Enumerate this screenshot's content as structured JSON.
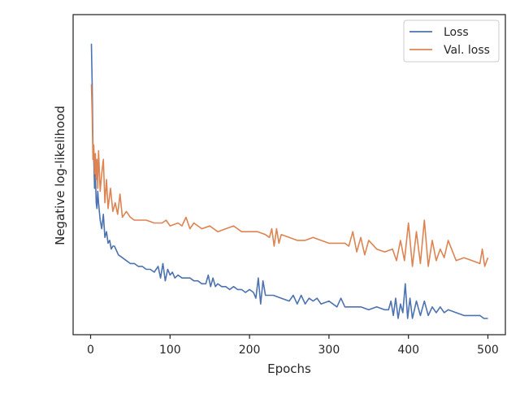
{
  "chart_data": {
    "type": "line",
    "title": "",
    "xlabel": "Epochs",
    "ylabel": "Negative log-likelihood",
    "xlim": [
      -22,
      522
    ],
    "ylim": [
      0.0,
      1.0
    ],
    "y_tick_labels_shown": false,
    "x_ticks": [
      0,
      100,
      200,
      300,
      400,
      500
    ],
    "x_tick_labels": [
      "0",
      "100",
      "200",
      "300",
      "400",
      "500"
    ],
    "grid": false,
    "legend_position": "upper right",
    "series": [
      {
        "name": "Loss",
        "color": "#4c72b0",
        "x": [
          1,
          2,
          3,
          4,
          5,
          6,
          7,
          8,
          9,
          10,
          12,
          14,
          16,
          18,
          20,
          22,
          24,
          26,
          28,
          30,
          35,
          40,
          45,
          50,
          55,
          60,
          65,
          70,
          75,
          80,
          85,
          88,
          91,
          94,
          97,
          100,
          103,
          106,
          110,
          115,
          120,
          125,
          130,
          135,
          140,
          145,
          148,
          151,
          154,
          157,
          160,
          165,
          170,
          175,
          180,
          185,
          190,
          195,
          200,
          205,
          208,
          211,
          214,
          217,
          220,
          225,
          230,
          240,
          250,
          255,
          260,
          265,
          270,
          275,
          280,
          285,
          290,
          300,
          305,
          310,
          315,
          320,
          330,
          340,
          350,
          360,
          370,
          375,
          378,
          381,
          384,
          387,
          390,
          393,
          396,
          399,
          402,
          405,
          410,
          415,
          420,
          425,
          430,
          435,
          440,
          445,
          450,
          460,
          470,
          480,
          490,
          495,
          500
        ],
        "y": [
          0.95,
          0.8,
          0.6,
          0.55,
          0.45,
          0.5,
          0.4,
          0.38,
          0.44,
          0.4,
          0.34,
          0.31,
          0.36,
          0.28,
          0.3,
          0.26,
          0.27,
          0.24,
          0.25,
          0.25,
          0.22,
          0.21,
          0.2,
          0.19,
          0.19,
          0.18,
          0.18,
          0.17,
          0.17,
          0.16,
          0.18,
          0.14,
          0.19,
          0.13,
          0.17,
          0.15,
          0.16,
          0.14,
          0.15,
          0.14,
          0.14,
          0.14,
          0.13,
          0.13,
          0.12,
          0.12,
          0.15,
          0.11,
          0.14,
          0.11,
          0.12,
          0.11,
          0.11,
          0.1,
          0.11,
          0.1,
          0.1,
          0.09,
          0.1,
          0.09,
          0.07,
          0.14,
          0.05,
          0.13,
          0.08,
          0.08,
          0.08,
          0.07,
          0.06,
          0.08,
          0.05,
          0.08,
          0.05,
          0.07,
          0.06,
          0.07,
          0.05,
          0.06,
          0.05,
          0.04,
          0.07,
          0.04,
          0.04,
          0.04,
          0.03,
          0.04,
          0.03,
          0.03,
          0.06,
          0.01,
          0.07,
          0.0,
          0.05,
          0.02,
          0.12,
          0.0,
          0.07,
          0.0,
          0.06,
          0.01,
          0.06,
          0.01,
          0.04,
          0.02,
          0.04,
          0.02,
          0.03,
          0.02,
          0.01,
          0.01,
          0.01,
          0.0,
          0.0
        ]
      },
      {
        "name": "Val. loss",
        "color": "#dd8452",
        "x": [
          1,
          2,
          3,
          4,
          5,
          6,
          7,
          8,
          9,
          10,
          12,
          14,
          16,
          18,
          20,
          22,
          25,
          28,
          31,
          34,
          37,
          40,
          45,
          50,
          55,
          60,
          70,
          80,
          90,
          95,
          100,
          110,
          115,
          120,
          125,
          130,
          140,
          150,
          160,
          170,
          180,
          190,
          200,
          210,
          220,
          225,
          228,
          231,
          234,
          237,
          240,
          250,
          260,
          270,
          280,
          290,
          300,
          310,
          320,
          325,
          330,
          335,
          340,
          345,
          350,
          360,
          370,
          380,
          385,
          390,
          395,
          400,
          405,
          410,
          415,
          420,
          425,
          430,
          435,
          440,
          445,
          450,
          460,
          470,
          480,
          490,
          493,
          496,
          500
        ],
        "y": [
          0.81,
          0.7,
          0.55,
          0.6,
          0.5,
          0.57,
          0.48,
          0.55,
          0.45,
          0.58,
          0.44,
          0.5,
          0.55,
          0.4,
          0.48,
          0.38,
          0.45,
          0.37,
          0.4,
          0.36,
          0.43,
          0.35,
          0.37,
          0.35,
          0.34,
          0.34,
          0.34,
          0.33,
          0.33,
          0.34,
          0.32,
          0.33,
          0.32,
          0.35,
          0.31,
          0.33,
          0.31,
          0.32,
          0.3,
          0.31,
          0.32,
          0.3,
          0.3,
          0.3,
          0.29,
          0.28,
          0.31,
          0.25,
          0.31,
          0.26,
          0.29,
          0.28,
          0.27,
          0.27,
          0.28,
          0.27,
          0.26,
          0.26,
          0.26,
          0.25,
          0.3,
          0.23,
          0.28,
          0.22,
          0.27,
          0.24,
          0.23,
          0.24,
          0.2,
          0.27,
          0.2,
          0.33,
          0.18,
          0.3,
          0.19,
          0.34,
          0.18,
          0.27,
          0.2,
          0.24,
          0.21,
          0.27,
          0.2,
          0.21,
          0.2,
          0.19,
          0.24,
          0.18,
          0.21
        ]
      }
    ]
  }
}
